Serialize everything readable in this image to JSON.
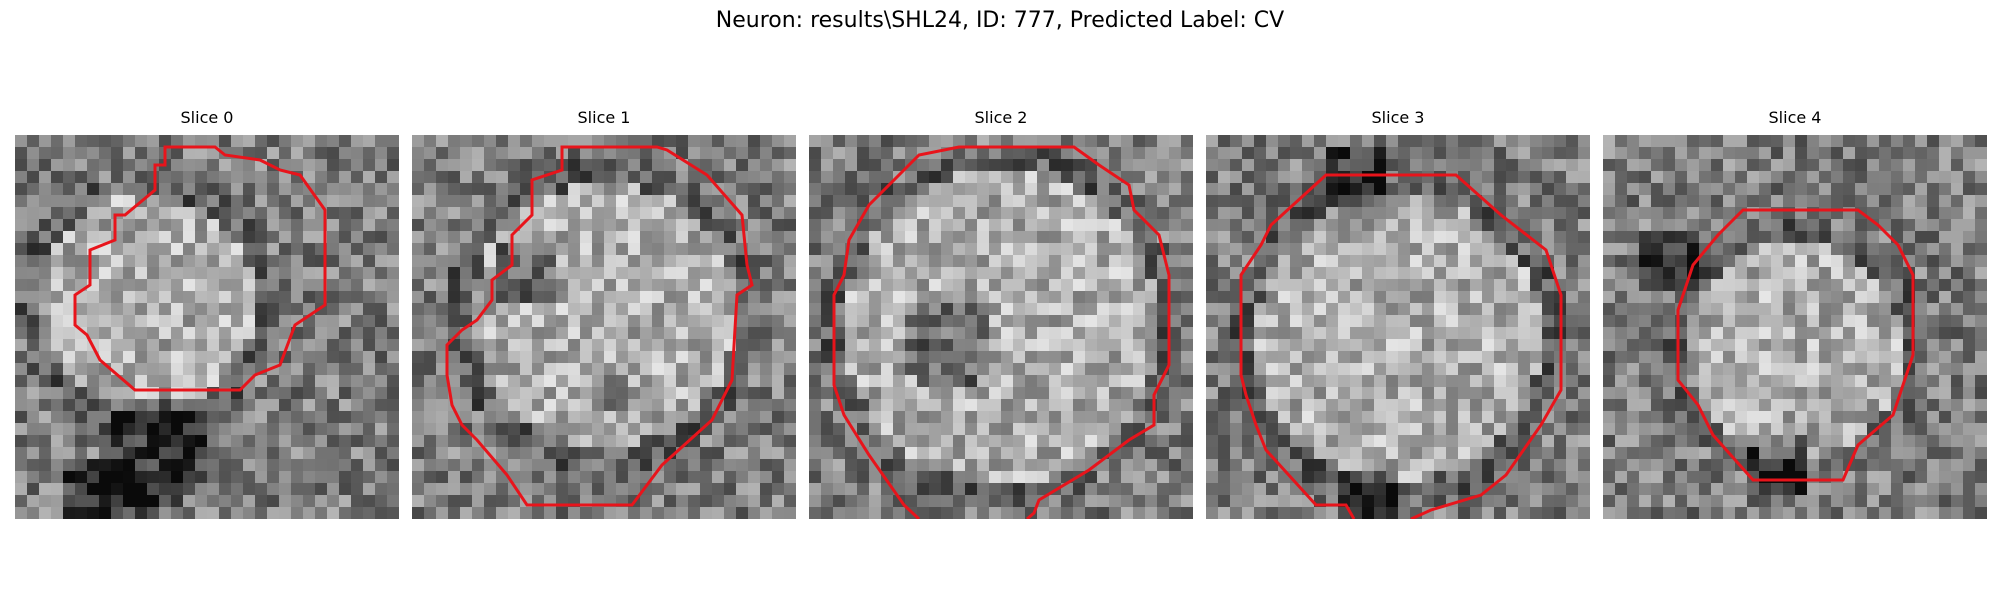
{
  "figure": {
    "title": "Neuron: results\\SHL24, ID: 777, Predicted Label: CV",
    "contour_color": "#e8141b"
  },
  "slices": [
    {
      "title": "Slice 0"
    },
    {
      "title": "Slice 1"
    },
    {
      "title": "Slice 2"
    },
    {
      "title": "Slice 3"
    },
    {
      "title": "Slice 4"
    }
  ]
}
